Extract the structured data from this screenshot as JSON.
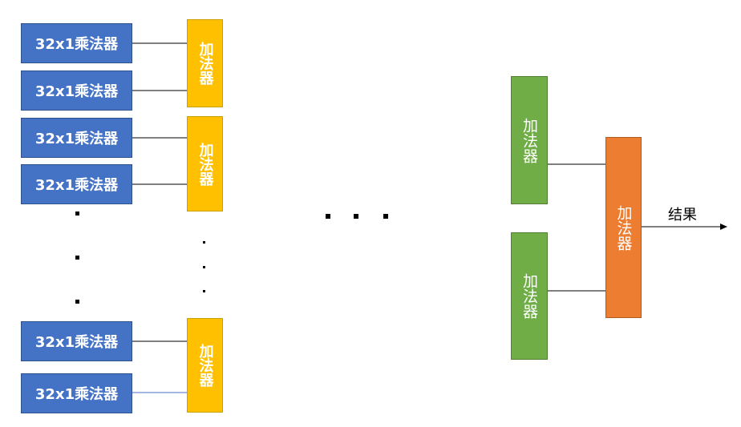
{
  "multiplier_label": "32x1乘法器",
  "adder_label": "加法器",
  "result_label": "结果",
  "colors": {
    "multiplier": "#4472c4",
    "adder_stage1": "#ffc000",
    "adder_intermediate": "#70ad47",
    "adder_final": "#ed7d31",
    "wire": "#000000",
    "highlight_wire": "#4472c4"
  }
}
